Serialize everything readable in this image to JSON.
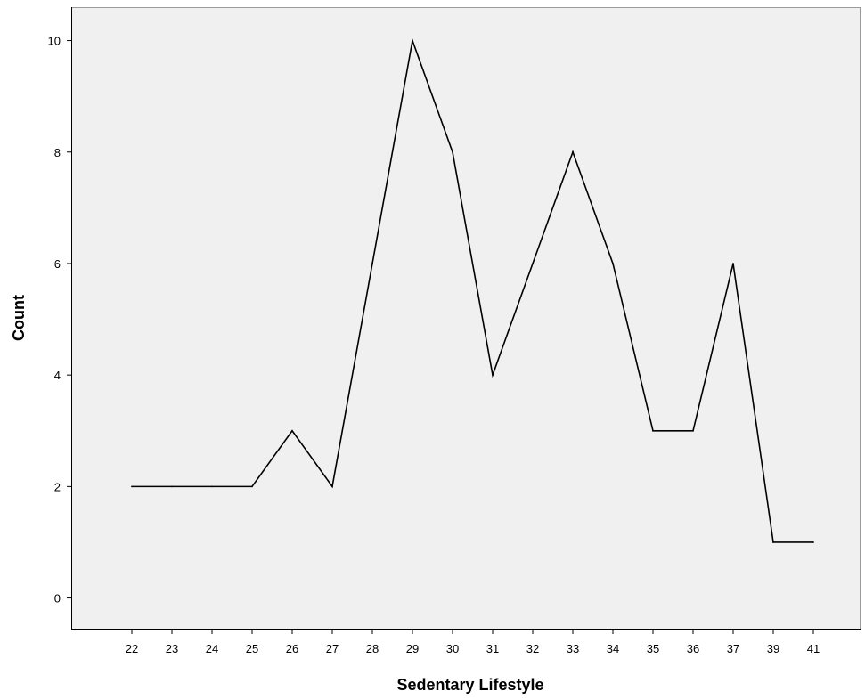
{
  "chart_data": {
    "type": "line",
    "title": "",
    "xlabel": "Sedentary Lifestyle",
    "ylabel": "Count",
    "categories": [
      "22",
      "23",
      "24",
      "25",
      "26",
      "27",
      "28",
      "29",
      "30",
      "31",
      "32",
      "33",
      "34",
      "35",
      "36",
      "37",
      "39",
      "41"
    ],
    "series": [
      {
        "values": [
          2,
          2,
          2,
          2,
          3,
          2,
          6,
          10,
          8,
          4,
          6,
          8,
          6,
          3,
          3,
          6,
          1,
          1
        ]
      }
    ],
    "y_ticks": [
      "0",
      "2",
      "4",
      "6",
      "8",
      "10"
    ],
    "ylim": [
      -0.55,
      10.6
    ],
    "grid": false,
    "legend": "none",
    "colors": {
      "plot_background": "#f0f0f0",
      "line": "#000000",
      "axis": "#000000",
      "frame": "#9a9a9a"
    }
  }
}
